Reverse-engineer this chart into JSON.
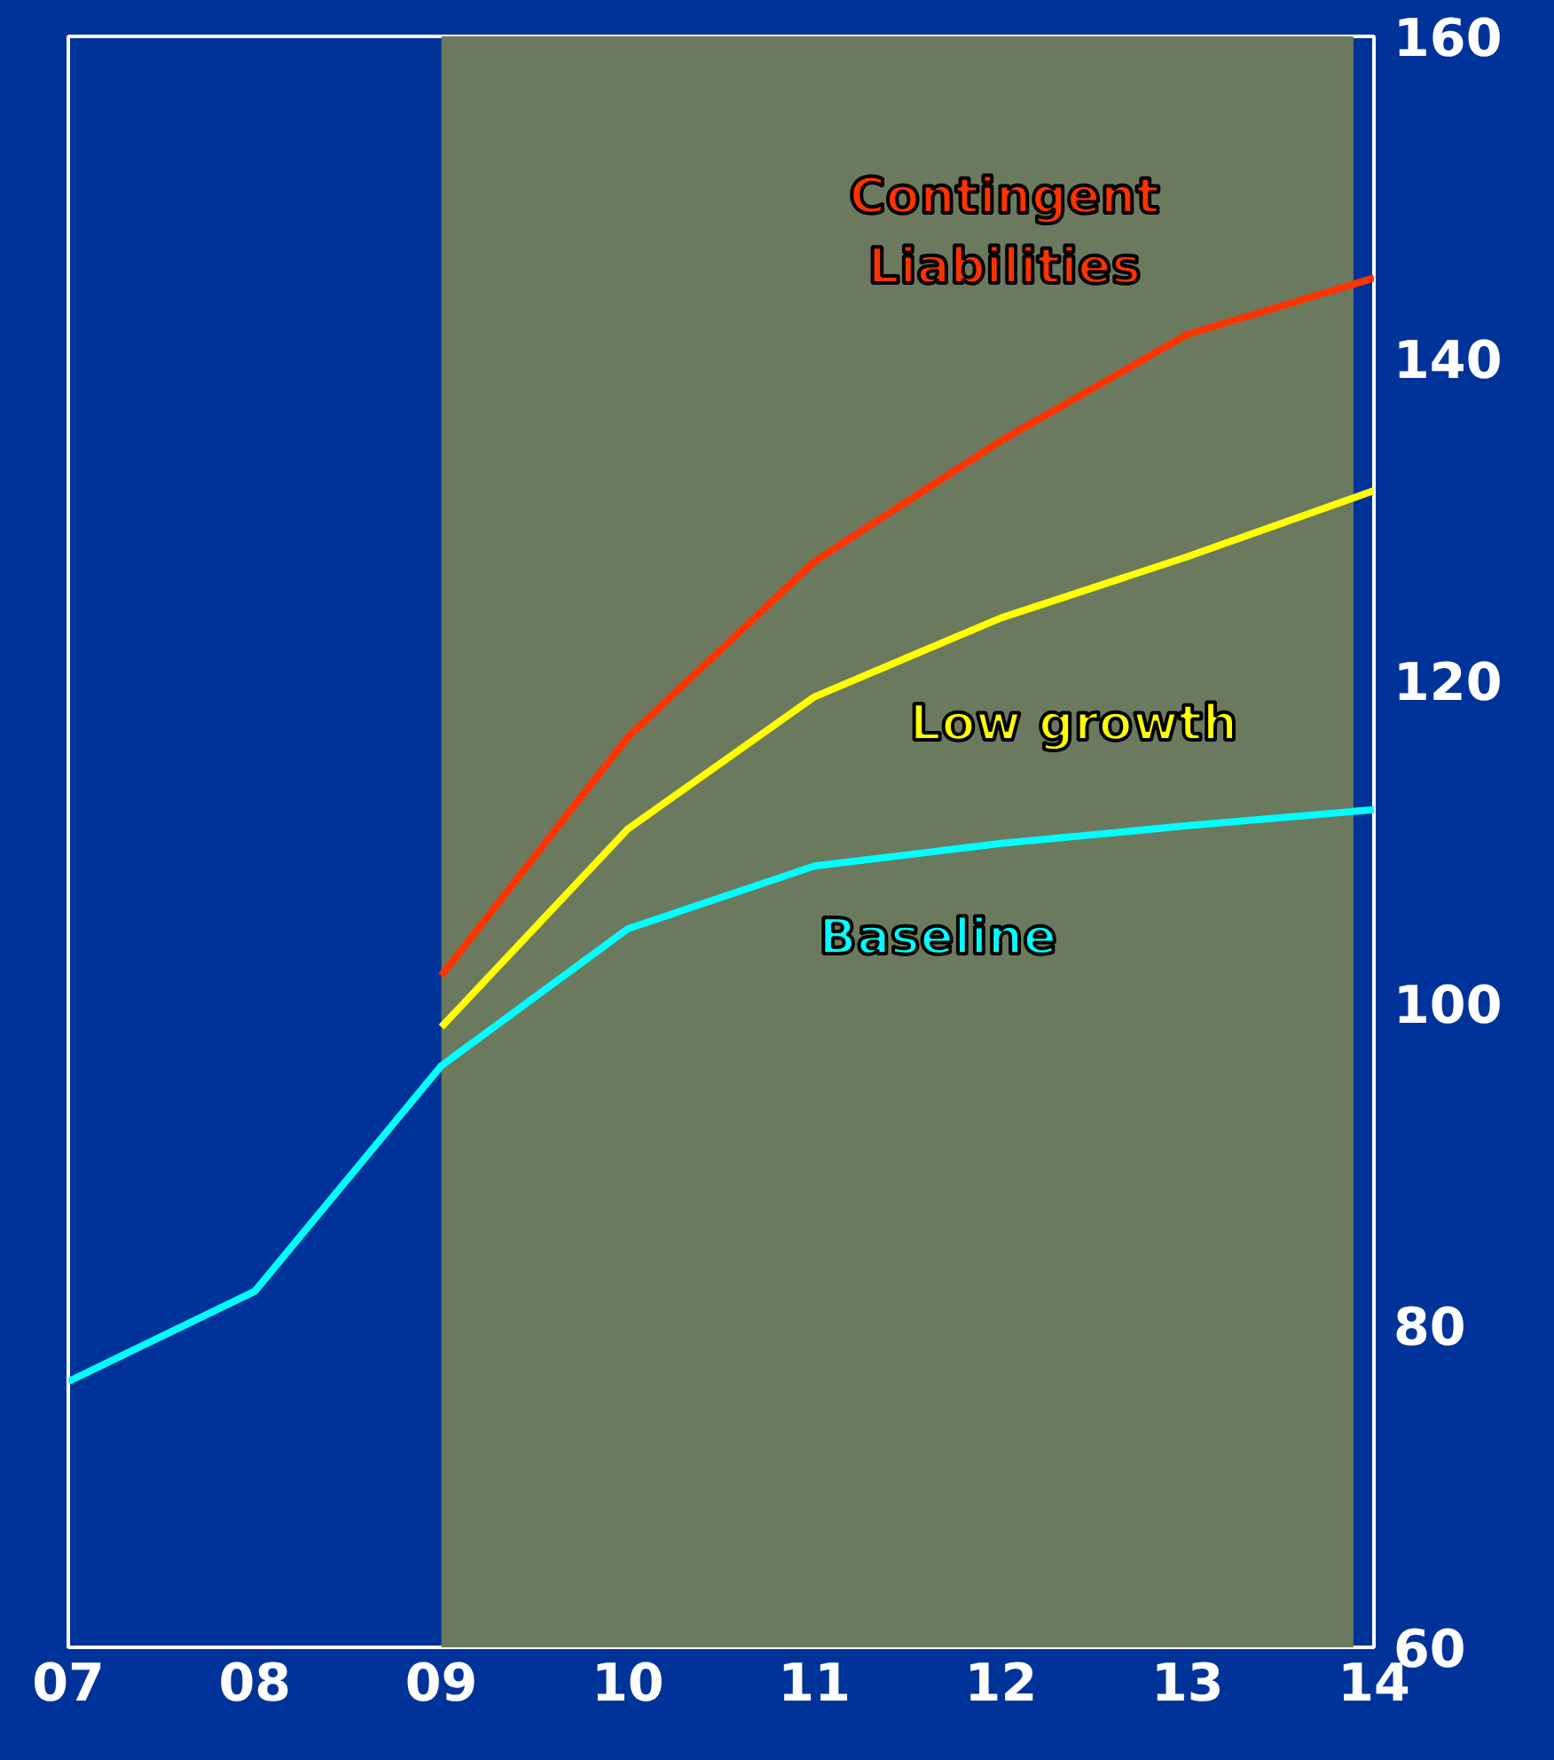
{
  "chart_data": {
    "type": "line",
    "x": [
      7,
      8,
      9,
      10,
      11,
      12,
      13,
      14
    ],
    "series": [
      {
        "color": "#00ffff",
        "values": [
          76.5,
          82.1,
          96.1,
          104.6,
          108.5,
          109.9,
          111.0,
          112.0
        ]
      },
      {
        "color": "#ffff00",
        "values": [
          null,
          null,
          98.5,
          110.8,
          119.0,
          123.9,
          127.7,
          131.8
        ]
      },
      {
        "color": "#ff3300",
        "values": [
          null,
          null,
          101.7,
          116.5,
          127.4,
          134.9,
          141.5,
          145.0
        ]
      }
    ],
    "annotations": [
      "Baseline",
      "Low growth",
      "Contingent\nLiabilities"
    ],
    "bands": [
      {
        "axis": "x",
        "from": 9,
        "to": 13.89,
        "color": "#6b7a5e"
      }
    ],
    "xlim": [
      7,
      14
    ],
    "xticks": [
      {
        "value": 7,
        "label": "07"
      },
      {
        "value": 8,
        "label": "08"
      },
      {
        "value": 9,
        "label": "09"
      },
      {
        "value": 10,
        "label": "10"
      },
      {
        "value": 11,
        "label": "11"
      },
      {
        "value": 12,
        "label": "12"
      },
      {
        "value": 13,
        "label": "13"
      },
      {
        "value": 14,
        "label": "14"
      }
    ],
    "ylim": [
      60,
      160
    ],
    "yticks": [
      60,
      80,
      100,
      120,
      140,
      160
    ],
    "grid": false,
    "marker": "none",
    "line_style": "solid"
  }
}
